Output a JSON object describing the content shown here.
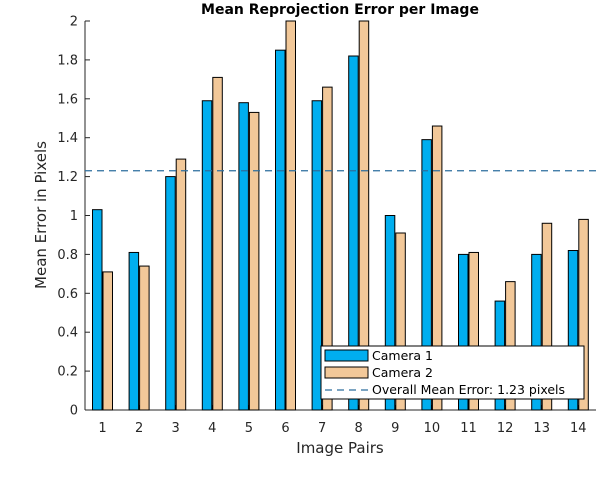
{
  "chart_data": {
    "type": "bar",
    "title": "Mean Reprojection Error per Image",
    "xlabel": "Image Pairs",
    "ylabel": "Mean Error in Pixels",
    "categories": [
      "1",
      "2",
      "3",
      "4",
      "5",
      "6",
      "7",
      "8",
      "9",
      "10",
      "11",
      "12",
      "13",
      "14"
    ],
    "ylim": [
      0,
      2
    ],
    "yticks": [
      "0",
      "0.2",
      "0.4",
      "0.6",
      "0.8",
      "1",
      "1.2",
      "1.4",
      "1.6",
      "1.8",
      "2"
    ],
    "series": [
      {
        "name": "Camera 1",
        "color": "#00aeef",
        "values": [
          1.03,
          0.81,
          1.2,
          1.59,
          1.58,
          1.85,
          1.59,
          1.82,
          1.0,
          1.39,
          0.8,
          0.56,
          0.8,
          0.82
        ]
      },
      {
        "name": "Camera 2",
        "color": "#f2c899",
        "values": [
          0.71,
          0.74,
          1.29,
          1.71,
          1.53,
          2.0,
          1.66,
          2.0,
          0.91,
          1.46,
          0.81,
          0.66,
          0.96,
          0.98
        ]
      }
    ],
    "reference_line": {
      "value": 1.23,
      "label": "Overall Mean Error: 1.23 pixels",
      "color": "#2c6e9e",
      "style": "dashed"
    },
    "legend_position": "bottom-right",
    "grid": false
  }
}
